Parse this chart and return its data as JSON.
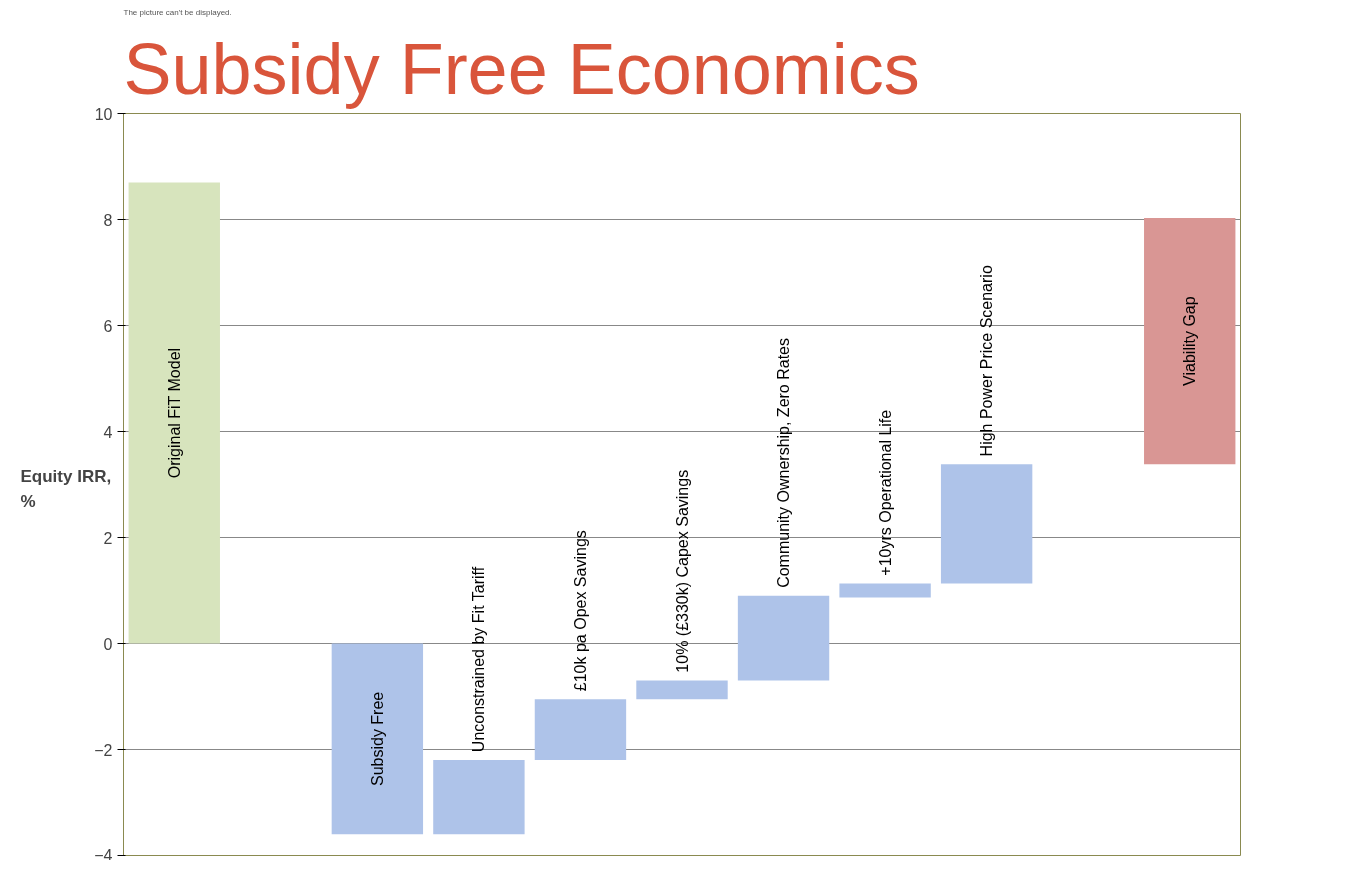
{
  "chart_data": {
    "type": "bar",
    "title": "Subsidy Free Economics",
    "ylabel": "Equity IRR, %",
    "annotations": [
      "The picture can't be displayed."
    ],
    "categories": [
      "Original FiT Model",
      null,
      "Subsidy Free",
      "Unconstrained by Fit Tariff",
      "£10k pa Opex Savings",
      "10% (£330k) Capex Savings",
      "Community Ownership, Zero Rates",
      "+10yrs Operational Life",
      "High Power Price Scenario",
      null,
      "Viability Gap"
    ],
    "values": [
      8.7,
      null,
      -3.6,
      1.4,
      1.15,
      0.35,
      1.6,
      0.26,
      2.25,
      null,
      4.65
    ],
    "base": [
      0,
      null,
      0,
      -3.6,
      -2.2,
      -1.05,
      -0.7,
      0.87,
      1.13,
      null,
      3.38
    ],
    "colors": [
      "#d7e4bd",
      "#ffffff",
      "#aec3e9",
      "#aec3e9",
      "#aec3e9",
      "#aec3e9",
      "#aec3e9",
      "#aec3e9",
      "#aec3e9",
      "#ffffff",
      "#d99694"
    ],
    "ylim": [
      -4,
      10
    ],
    "yticks": [
      -4,
      -2,
      0,
      2,
      4,
      6,
      8,
      10
    ],
    "grid": "y",
    "tick_labels": "y"
  }
}
